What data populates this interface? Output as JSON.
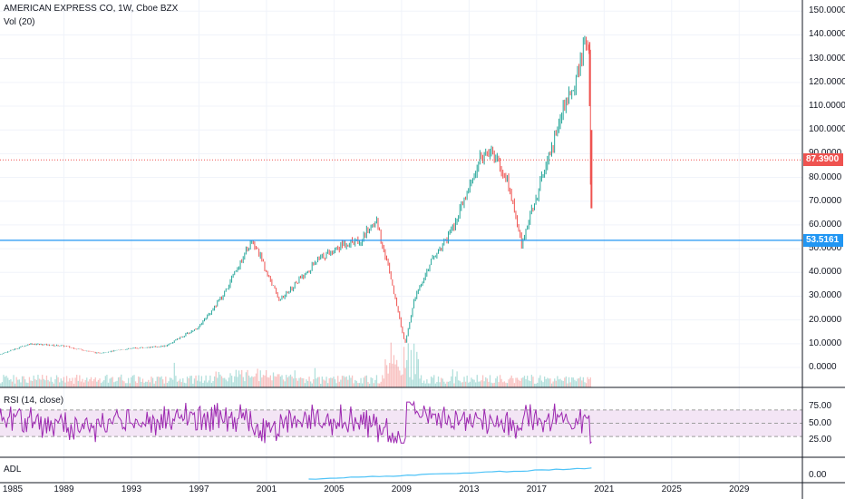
{
  "header": {
    "title": "AMERICAN EXPRESS CO, 1W, Cboe BZX",
    "volume_label": "Vol (20)"
  },
  "indicators": {
    "rsi_label": "RSI (14, close)",
    "adl_label": "ADL"
  },
  "price_axis": {
    "ticks": [
      "150.0000",
      "140.0000",
      "130.0000",
      "120.0000",
      "110.0000",
      "100.0000",
      "90.0000",
      "80.0000",
      "70.0000",
      "60.0000",
      "50.0000",
      "40.0000",
      "30.0000",
      "20.0000",
      "10.0000",
      "0.0000"
    ],
    "last_price": "87.3900",
    "horizontal_level": "53.5161"
  },
  "rsi_axis": {
    "ticks": [
      "75.00",
      "50.00",
      "25.00"
    ]
  },
  "adl_axis": {
    "ticks": [
      "0.00"
    ]
  },
  "time_axis": {
    "ticks": [
      "1985",
      "1989",
      "1993",
      "1997",
      "2001",
      "2005",
      "2009",
      "2013",
      "2017",
      "2021",
      "2025",
      "2029"
    ]
  },
  "colors": {
    "up": "#26a69a",
    "down": "#ef5350",
    "last_price_line": "#ef5350",
    "level_line": "#2196f3",
    "rsi_line": "#9c27b0",
    "rsi_band": "#f3e5f5",
    "adl_line": "#4fc3f7"
  },
  "chart_data": {
    "type": "line",
    "title": "AMERICAN EXPRESS CO, 1W, Cboe BZX",
    "price_ylim": [
      0,
      150
    ],
    "x": [
      1985,
      1987,
      1989,
      1991,
      1993,
      1995,
      1997,
      1998.5,
      1999.5,
      2000.2,
      2001,
      2001.8,
      2002.7,
      2004,
      2005.5,
      2006.5,
      2007.5,
      2008.3,
      2009.2,
      2009.8,
      2010.8,
      2012,
      2013,
      2013.8,
      2014.3,
      2015.3,
      2016.1,
      2016.8,
      2017.6,
      2018.6,
      2019.3,
      2019.8,
      2020.1,
      2020.2,
      2020.25
    ],
    "price": [
      5,
      10,
      9,
      6,
      8,
      9,
      17,
      31,
      45,
      54,
      40,
      28,
      35,
      45,
      52,
      53,
      62,
      40,
      10,
      30,
      45,
      58,
      75,
      90,
      92,
      78,
      52,
      68,
      85,
      110,
      120,
      136,
      135,
      70,
      87.39
    ],
    "last_price": 87.39,
    "horizontal_level": 53.5161,
    "rsi_ylim": [
      0,
      100
    ],
    "rsi_bands": [
      30,
      70
    ],
    "adl_start_year": 2003.5
  }
}
